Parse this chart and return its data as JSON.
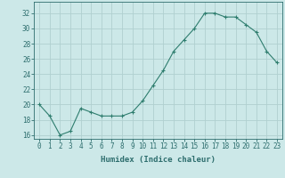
{
  "x": [
    0,
    1,
    2,
    3,
    4,
    5,
    6,
    7,
    8,
    9,
    10,
    11,
    12,
    13,
    14,
    15,
    16,
    17,
    18,
    19,
    20,
    21,
    22,
    23
  ],
  "y": [
    20,
    18.5,
    16,
    16.5,
    19.5,
    19,
    18.5,
    18.5,
    18.5,
    19,
    20.5,
    22.5,
    24.5,
    27,
    28.5,
    30,
    32,
    32,
    31.5,
    31.5,
    30.5,
    29.5,
    27,
    25.5
  ],
  "line_color": "#2e7d6e",
  "marker": "+",
  "marker_color": "#2e7d6e",
  "bg_color": "#cce8e8",
  "grid_color": "#b0d0d0",
  "xlabel": "Humidex (Indice chaleur)",
  "ylabel_ticks": [
    16,
    18,
    20,
    22,
    24,
    26,
    28,
    30,
    32
  ],
  "ylim": [
    15.5,
    33.5
  ],
  "xlim": [
    -0.5,
    23.5
  ],
  "tick_color": "#2e6e6e",
  "axis_color": "#2e6e6e",
  "label_fontsize": 6.5,
  "tick_fontsize": 5.5
}
